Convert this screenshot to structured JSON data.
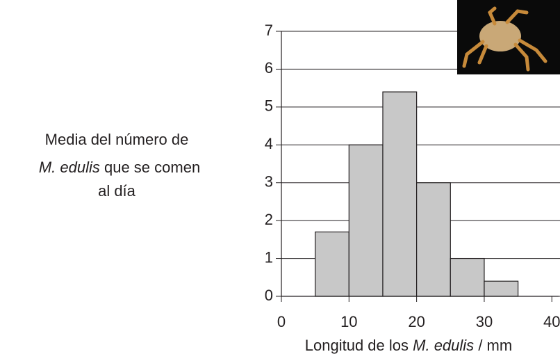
{
  "chart_data": {
    "type": "histogram",
    "ylabel": [
      "Media del número de",
      "M. edulis",
      "que se comen",
      "al día"
    ],
    "xlabel": [
      "Longitud de los",
      "M. edulis",
      "/ mm"
    ],
    "bins": [
      5,
      10,
      15,
      20,
      25,
      30,
      35
    ],
    "values": [
      1.7,
      4.0,
      5.4,
      3.0,
      1.0,
      0.4
    ],
    "color": "#c8c8c8",
    "xlim": [
      0,
      41
    ],
    "xticks": [
      0,
      10,
      20,
      30,
      40
    ],
    "ylim": [
      0,
      7
    ],
    "yticks": [
      0,
      1,
      2,
      3,
      4,
      5,
      6,
      7
    ],
    "grid": true
  }
}
